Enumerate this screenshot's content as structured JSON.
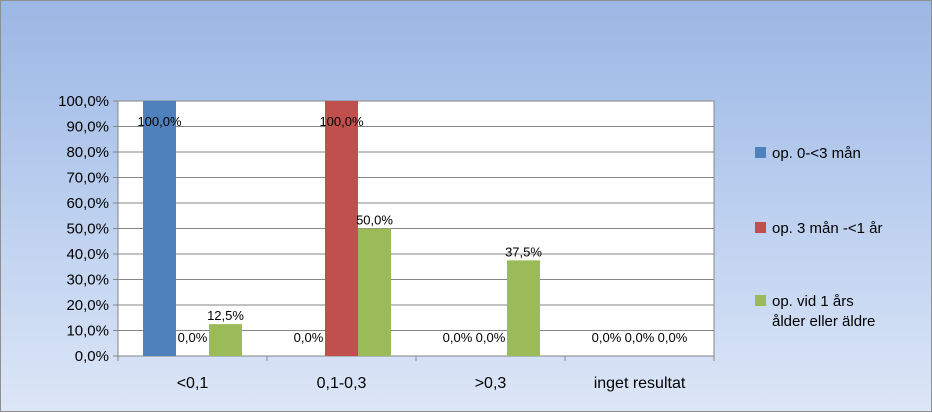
{
  "chart_data": {
    "type": "bar",
    "categories": [
      "<0,1",
      "0,1-0,3",
      ">0,3",
      "inget resultat"
    ],
    "series": [
      {
        "name": "op. 0-<3 mån",
        "color": "#4f81bd",
        "values": [
          100.0,
          0.0,
          0.0,
          0.0
        ],
        "labels": [
          "100,0%",
          "0,0%",
          "0,0%",
          "0,0%"
        ]
      },
      {
        "name": "op. 3 mån -<1 år",
        "color": "#c0504d",
        "values": [
          0.0,
          100.0,
          0.0,
          0.0
        ],
        "labels": [
          "0,0%",
          "100,0%",
          "0,0%",
          "0,0%"
        ]
      },
      {
        "name": "op. vid 1 års ålder eller äldre",
        "legend_lines": [
          "op. vid 1 års",
          "ålder eller äldre"
        ],
        "color": "#9bbb59",
        "values": [
          12.5,
          50.0,
          37.5,
          0.0
        ],
        "labels": [
          "12,5%",
          "50,0%",
          "37,5%",
          "0,0%"
        ]
      }
    ],
    "y_ticks": [
      "0,0%",
      "10,0%",
      "20,0%",
      "30,0%",
      "40,0%",
      "50,0%",
      "60,0%",
      "70,0%",
      "80,0%",
      "90,0%",
      "100,0%"
    ],
    "ylim": [
      0,
      100
    ],
    "grid": true,
    "legend_position": "right"
  }
}
